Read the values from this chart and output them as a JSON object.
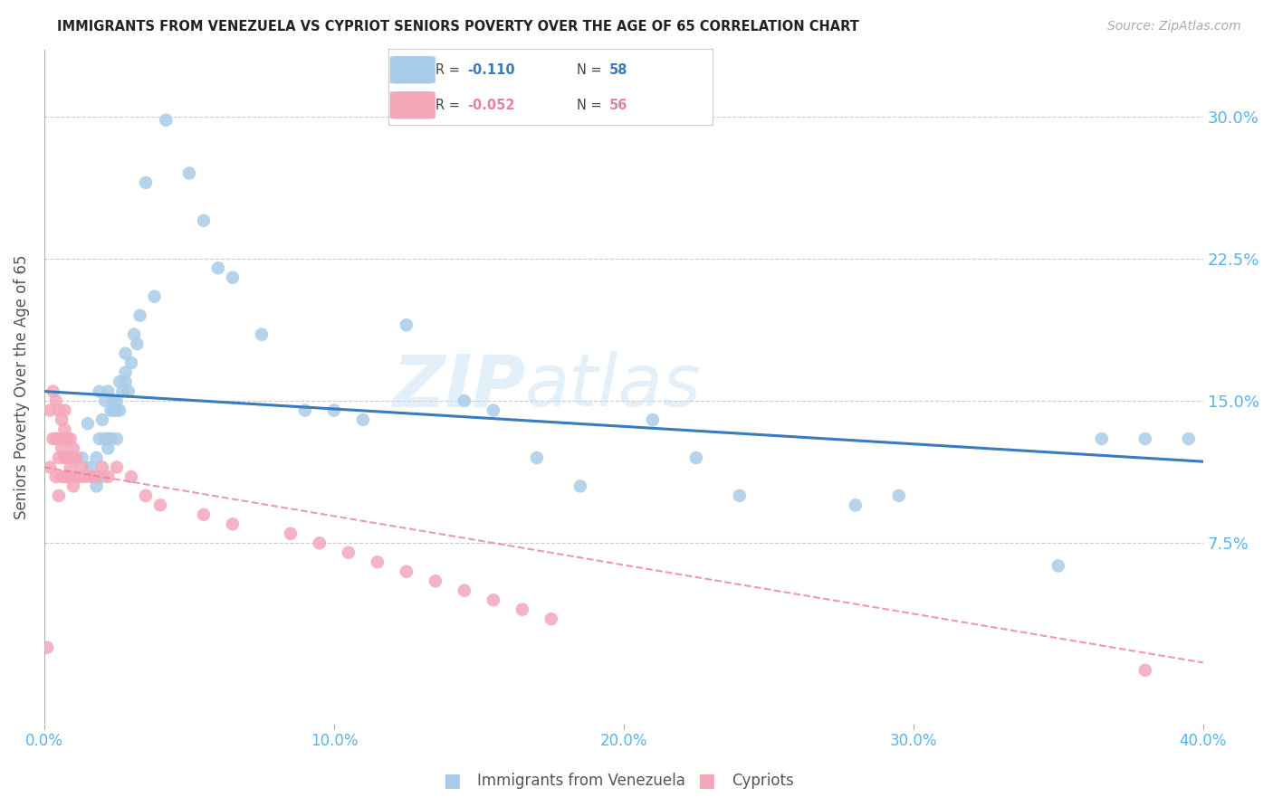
{
  "title": "IMMIGRANTS FROM VENEZUELA VS CYPRIOT SENIORS POVERTY OVER THE AGE OF 65 CORRELATION CHART",
  "source": "Source: ZipAtlas.com",
  "ylabel": "Seniors Poverty Over the Age of 65",
  "legend_label_1": "Immigrants from Venezuela",
  "legend_label_2": "Cypriots",
  "legend_r1": "-0.110",
  "legend_n1": "58",
  "legend_r2": "-0.052",
  "legend_n2": "56",
  "color_blue": "#a8cce8",
  "color_pink": "#f4a7b9",
  "color_blue_line": "#3a7abf",
  "color_pink_line": "#e8819a",
  "color_tick": "#5ab4e8",
  "xlim": [
    0.0,
    0.4
  ],
  "ylim": [
    -0.02,
    0.335
  ],
  "yticks": [
    0.075,
    0.15,
    0.225,
    0.3
  ],
  "ytick_labels": [
    "7.5%",
    "15.0%",
    "22.5%",
    "30.0%"
  ],
  "xticks": [
    0.0,
    0.1,
    0.2,
    0.3,
    0.4
  ],
  "xtick_labels": [
    "0.0%",
    "10.0%",
    "20.0%",
    "30.0%",
    "40.0%"
  ],
  "watermark_zip": "ZIP",
  "watermark_atlas": "atlas",
  "blue_scatter_x": [
    0.013,
    0.015,
    0.016,
    0.017,
    0.018,
    0.018,
    0.019,
    0.019,
    0.02,
    0.02,
    0.021,
    0.021,
    0.022,
    0.022,
    0.022,
    0.023,
    0.023,
    0.024,
    0.024,
    0.025,
    0.025,
    0.025,
    0.026,
    0.026,
    0.027,
    0.028,
    0.028,
    0.028,
    0.029,
    0.03,
    0.031,
    0.032,
    0.033,
    0.035,
    0.038,
    0.042,
    0.05,
    0.055,
    0.06,
    0.065,
    0.075,
    0.09,
    0.1,
    0.11,
    0.125,
    0.145,
    0.155,
    0.17,
    0.185,
    0.21,
    0.225,
    0.24,
    0.28,
    0.295,
    0.35,
    0.365,
    0.38,
    0.395
  ],
  "blue_scatter_y": [
    0.12,
    0.138,
    0.115,
    0.11,
    0.105,
    0.12,
    0.13,
    0.155,
    0.11,
    0.14,
    0.13,
    0.15,
    0.125,
    0.13,
    0.155,
    0.13,
    0.145,
    0.145,
    0.15,
    0.13,
    0.145,
    0.15,
    0.145,
    0.16,
    0.155,
    0.165,
    0.16,
    0.175,
    0.155,
    0.17,
    0.185,
    0.18,
    0.195,
    0.265,
    0.205,
    0.298,
    0.27,
    0.245,
    0.22,
    0.215,
    0.185,
    0.145,
    0.145,
    0.14,
    0.19,
    0.15,
    0.145,
    0.12,
    0.105,
    0.14,
    0.12,
    0.1,
    0.095,
    0.1,
    0.063,
    0.13,
    0.13,
    0.13
  ],
  "pink_scatter_x": [
    0.001,
    0.002,
    0.002,
    0.003,
    0.003,
    0.004,
    0.004,
    0.004,
    0.005,
    0.005,
    0.005,
    0.005,
    0.006,
    0.006,
    0.006,
    0.007,
    0.007,
    0.007,
    0.007,
    0.007,
    0.008,
    0.008,
    0.008,
    0.009,
    0.009,
    0.009,
    0.009,
    0.01,
    0.01,
    0.01,
    0.011,
    0.011,
    0.012,
    0.013,
    0.014,
    0.016,
    0.018,
    0.02,
    0.022,
    0.025,
    0.03,
    0.035,
    0.04,
    0.055,
    0.065,
    0.085,
    0.095,
    0.105,
    0.115,
    0.125,
    0.135,
    0.145,
    0.155,
    0.165,
    0.175,
    0.38
  ],
  "pink_scatter_y": [
    0.02,
    0.145,
    0.115,
    0.155,
    0.13,
    0.15,
    0.13,
    0.11,
    0.145,
    0.13,
    0.12,
    0.1,
    0.14,
    0.125,
    0.11,
    0.145,
    0.135,
    0.13,
    0.12,
    0.11,
    0.13,
    0.12,
    0.11,
    0.13,
    0.12,
    0.115,
    0.11,
    0.125,
    0.12,
    0.105,
    0.12,
    0.11,
    0.11,
    0.115,
    0.11,
    0.11,
    0.11,
    0.115,
    0.11,
    0.115,
    0.11,
    0.1,
    0.095,
    0.09,
    0.085,
    0.08,
    0.075,
    0.07,
    0.065,
    0.06,
    0.055,
    0.05,
    0.045,
    0.04,
    0.035,
    0.008
  ],
  "blue_trend_x": [
    0.0,
    0.4
  ],
  "blue_trend_y": [
    0.155,
    0.118
  ],
  "pink_trend_x": [
    0.0,
    0.4
  ],
  "pink_trend_y": [
    0.115,
    0.012
  ]
}
